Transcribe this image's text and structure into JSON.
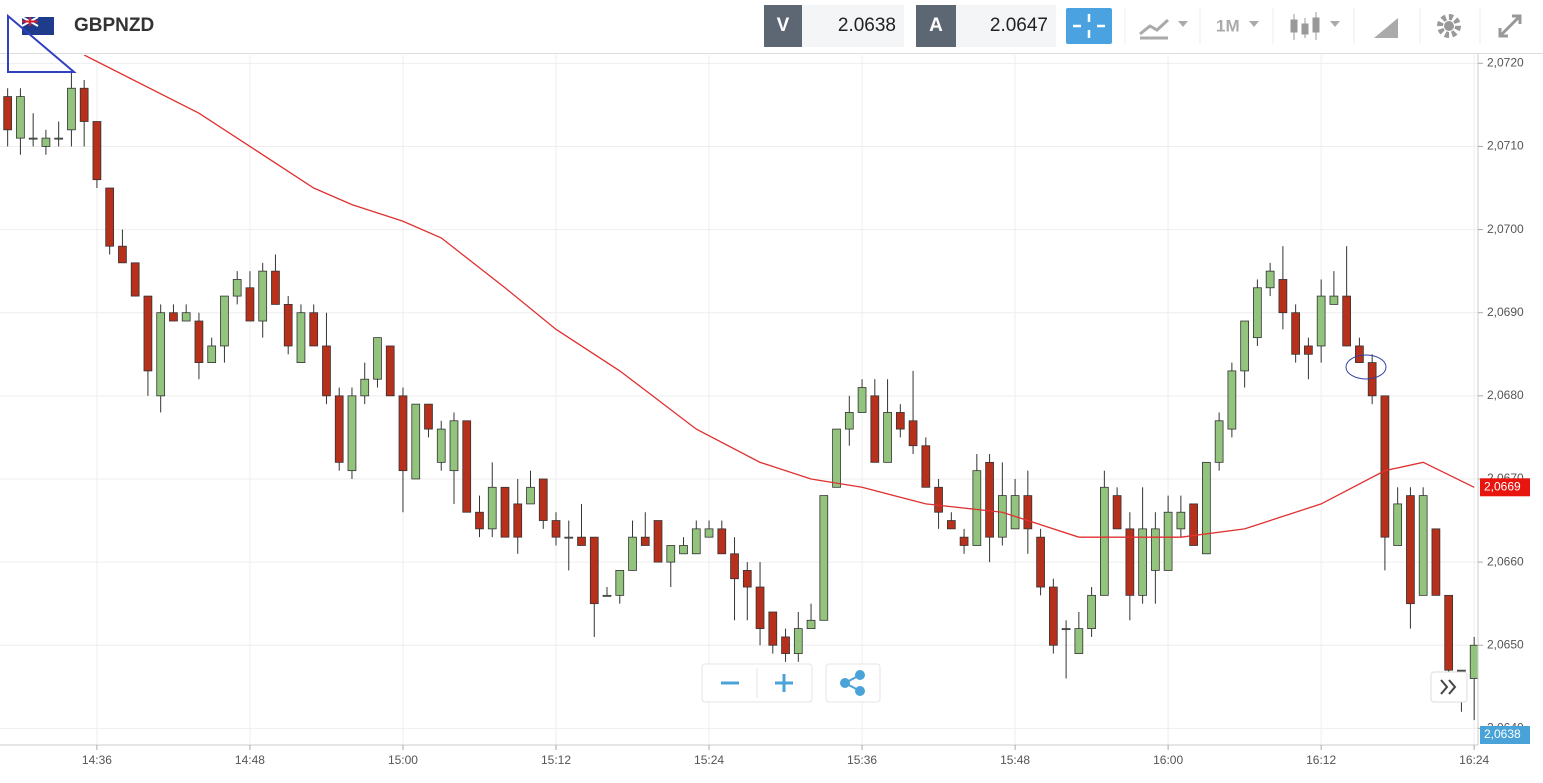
{
  "toolbar": {
    "symbol": "GBPNZD",
    "bid_label": "V",
    "bid": "2.0638",
    "ask_label": "A",
    "ask": "2.0647",
    "timeframe": "1M"
  },
  "chart_data": {
    "type": "candlestick",
    "up_color": "#93c47d",
    "down_color": "#b7301c",
    "grid": true,
    "x": [
      869,
      870,
      871,
      872,
      873,
      874,
      875,
      876,
      877,
      878,
      879,
      880,
      881,
      882,
      883,
      884,
      885,
      886,
      887,
      888,
      889,
      890,
      891,
      892,
      893,
      894,
      895,
      896,
      897,
      898,
      899,
      900,
      901,
      902,
      903,
      904,
      905,
      906,
      907,
      908,
      909,
      910,
      911,
      912,
      913,
      914,
      915,
      916,
      917,
      918,
      919,
      920,
      921,
      922,
      923,
      924,
      925,
      926,
      927,
      928,
      929,
      930,
      931,
      932,
      933,
      934,
      935,
      936,
      937,
      938,
      939,
      940,
      941,
      942,
      943,
      944,
      945,
      946,
      947,
      948,
      949,
      950,
      951,
      952,
      953,
      954,
      955,
      956,
      957,
      958,
      959,
      960,
      961,
      962,
      963,
      964,
      965,
      966,
      967,
      968,
      969,
      970,
      971,
      972,
      973,
      974,
      975,
      976,
      977,
      978,
      979,
      980,
      981,
      982,
      983,
      984
    ],
    "open": [
      2.0716,
      2.0711,
      2.0711,
      2.071,
      2.0711,
      2.0712,
      2.0717,
      2.0713,
      2.0705,
      2.0698,
      2.0696,
      2.0692,
      2.068,
      2.069,
      2.0689,
      2.0689,
      2.0684,
      2.0686,
      2.0692,
      2.0693,
      2.0689,
      2.0695,
      2.0691,
      2.0684,
      2.069,
      2.0686,
      2.068,
      2.0671,
      2.068,
      2.0682,
      2.0686,
      2.068,
      2.067,
      2.0679,
      2.0672,
      2.0671,
      2.0677,
      2.0666,
      2.0664,
      2.0669,
      2.0667,
      2.0667,
      2.067,
      2.0665,
      2.0663,
      2.0663,
      2.0663,
      2.0656,
      2.0656,
      2.0659,
      2.0663,
      2.0665,
      2.066,
      2.0661,
      2.0661,
      2.0663,
      2.0664,
      2.0661,
      2.0659,
      2.0657,
      2.0654,
      2.0651,
      2.0649,
      2.0652,
      2.0653,
      2.0669,
      2.0676,
      2.0678,
      2.068,
      2.0672,
      2.0678,
      2.0677,
      2.0674,
      2.0669,
      2.0665,
      2.0663,
      2.0662,
      2.0672,
      2.0663,
      2.0664,
      2.0668,
      2.0663,
      2.0657,
      2.0652,
      2.0649,
      2.0652,
      2.0656,
      2.0668,
      2.0664,
      2.0656,
      2.0659,
      2.0659,
      2.0664,
      2.0667,
      2.0661,
      2.0672,
      2.0676,
      2.0683,
      2.0687,
      2.0693,
      2.0694,
      2.069,
      2.0686,
      2.0686,
      2.0691,
      2.0692,
      2.0686,
      2.0684,
      2.068,
      2.0662,
      2.0668,
      2.0656,
      2.0664,
      2.0656,
      2.0647,
      2.0646
    ],
    "high": [
      2.0717,
      2.0717,
      2.0714,
      2.0712,
      2.0713,
      2.0719,
      2.0718,
      2.0713,
      2.0705,
      2.07,
      2.0696,
      2.0692,
      2.0691,
      2.0691,
      2.0691,
      2.069,
      2.0687,
      2.0692,
      2.0695,
      2.0695,
      2.0696,
      2.0697,
      2.0692,
      2.0691,
      2.0691,
      2.069,
      2.0681,
      2.0681,
      2.0684,
      2.0687,
      2.0686,
      2.0681,
      2.0679,
      2.0679,
      2.0677,
      2.0678,
      2.0677,
      2.0668,
      2.0672,
      2.0669,
      2.067,
      2.0671,
      2.067,
      2.0666,
      2.0665,
      2.0667,
      2.0663,
      2.0657,
      2.0659,
      2.0665,
      2.0666,
      2.0665,
      2.0662,
      2.0663,
      2.0665,
      2.0665,
      2.0665,
      2.0663,
      2.066,
      2.066,
      2.0654,
      2.0652,
      2.0654,
      2.0655,
      2.0668,
      2.0676,
      2.068,
      2.0682,
      2.0682,
      2.0682,
      2.0679,
      2.0683,
      2.0675,
      2.067,
      2.0666,
      2.0664,
      2.0673,
      2.0673,
      2.0672,
      2.067,
      2.0671,
      2.0664,
      2.0658,
      2.0653,
      2.0654,
      2.0657,
      2.0671,
      2.0669,
      2.0666,
      2.0669,
      2.0666,
      2.0668,
      2.0668,
      2.0667,
      2.0672,
      2.0678,
      2.0684,
      2.0689,
      2.0694,
      2.0696,
      2.0698,
      2.0691,
      2.0687,
      2.0694,
      2.0695,
      2.0698,
      2.0687,
      2.0685,
      2.068,
      2.0669,
      2.0669,
      2.0669,
      2.0664,
      2.0656,
      2.0647,
      2.0651
    ],
    "low": [
      2.071,
      2.0709,
      2.071,
      2.0709,
      2.071,
      2.071,
      2.071,
      2.0705,
      2.0697,
      2.0696,
      2.0692,
      2.068,
      2.0678,
      2.0689,
      2.0689,
      2.0682,
      2.0684,
      2.0684,
      2.0691,
      2.0689,
      2.0687,
      2.0691,
      2.0685,
      2.0684,
      2.0686,
      2.0679,
      2.0671,
      2.067,
      2.0679,
      2.0681,
      2.068,
      2.0666,
      2.067,
      2.0675,
      2.0671,
      2.0667,
      2.0666,
      2.0663,
      2.0663,
      2.0663,
      2.0661,
      2.0667,
      2.0664,
      2.0662,
      2.0659,
      2.0662,
      2.0651,
      2.0656,
      2.0655,
      2.0659,
      2.0662,
      2.066,
      2.0657,
      2.0661,
      2.0661,
      2.0663,
      2.0661,
      2.0653,
      2.0653,
      2.065,
      2.0649,
      2.0648,
      2.0648,
      2.0652,
      2.0653,
      2.0669,
      2.0674,
      2.0678,
      2.0672,
      2.0672,
      2.0675,
      2.0673,
      2.0669,
      2.0664,
      2.0664,
      2.0661,
      2.0662,
      2.066,
      2.0662,
      2.0664,
      2.0661,
      2.0656,
      2.0649,
      2.0646,
      2.0649,
      2.0651,
      2.0656,
      2.0664,
      2.0653,
      2.0655,
      2.0655,
      2.0659,
      2.0663,
      2.0662,
      2.0661,
      2.0671,
      2.0675,
      2.0681,
      2.0686,
      2.0692,
      2.0688,
      2.0684,
      2.0682,
      2.0684,
      2.0691,
      2.0686,
      2.0684,
      2.0679,
      2.0659,
      2.0662,
      2.0652,
      2.0656,
      2.0656,
      2.0645,
      2.0642,
      2.0641
    ],
    "close": [
      2.0712,
      2.0716,
      2.0711,
      2.0711,
      2.0711,
      2.0717,
      2.0713,
      2.0706,
      2.0698,
      2.0696,
      2.0692,
      2.0683,
      2.069,
      2.0689,
      2.069,
      2.0684,
      2.0686,
      2.0692,
      2.0694,
      2.0689,
      2.0695,
      2.0691,
      2.0686,
      2.069,
      2.0686,
      2.068,
      2.0672,
      2.068,
      2.0682,
      2.0687,
      2.068,
      2.0671,
      2.0679,
      2.0676,
      2.0676,
      2.0677,
      2.0666,
      2.0664,
      2.0669,
      2.0663,
      2.0663,
      2.0669,
      2.0665,
      2.0663,
      2.0663,
      2.0662,
      2.0655,
      2.0656,
      2.0659,
      2.0663,
      2.0662,
      2.066,
      2.0662,
      2.0662,
      2.0664,
      2.0664,
      2.0661,
      2.0658,
      2.0657,
      2.0652,
      2.065,
      2.0649,
      2.0652,
      2.0653,
      2.0668,
      2.0676,
      2.0678,
      2.0681,
      2.0672,
      2.0678,
      2.0676,
      2.0674,
      2.0669,
      2.0666,
      2.0664,
      2.0662,
      2.0671,
      2.0663,
      2.0668,
      2.0668,
      2.0664,
      2.0657,
      2.065,
      2.0652,
      2.0652,
      2.0656,
      2.0669,
      2.0664,
      2.0656,
      2.0664,
      2.0664,
      2.0666,
      2.0666,
      2.0662,
      2.0672,
      2.0677,
      2.0683,
      2.0689,
      2.0693,
      2.0695,
      2.069,
      2.0685,
      2.0685,
      2.0692,
      2.0692,
      2.0686,
      2.0684,
      2.068,
      2.0663,
      2.0667,
      2.0655,
      2.0668,
      2.0656,
      2.0647,
      2.0647,
      2.065
    ],
    "moving_average": {
      "color": "#e03030",
      "x": [
        875,
        884,
        888,
        893,
        896,
        900,
        903,
        908,
        912,
        917,
        923,
        928,
        932,
        936,
        941,
        947,
        953,
        961,
        966,
        972,
        977,
        980,
        984
      ],
      "values": [
        2.0721,
        2.0714,
        2.071,
        2.0705,
        2.0703,
        2.0701,
        2.0699,
        2.0693,
        2.0688,
        2.0683,
        2.0676,
        2.0672,
        2.067,
        2.0669,
        2.0667,
        2.0666,
        2.0663,
        2.0663,
        2.0664,
        2.0667,
        2.0671,
        2.0672,
        2.0669
      ]
    },
    "xlim": [
      868.4,
      984.3
    ],
    "ylim": [
      2.0638,
      2.0721
    ],
    "xticks": [
      {
        "value": 876,
        "label": "14:36"
      },
      {
        "value": 888,
        "label": "14:48"
      },
      {
        "value": 900,
        "label": "15:00"
      },
      {
        "value": 912,
        "label": "15:12"
      },
      {
        "value": 924,
        "label": "15:24"
      },
      {
        "value": 936,
        "label": "15:36"
      },
      {
        "value": 948,
        "label": "15:48"
      },
      {
        "value": 960,
        "label": "16:00"
      },
      {
        "value": 972,
        "label": "16:12"
      },
      {
        "value": 984,
        "label": "16:24"
      }
    ],
    "yticks": [
      {
        "value": 2.064,
        "label": "2,0640"
      },
      {
        "value": 2.065,
        "label": "2,0650"
      },
      {
        "value": 2.066,
        "label": "2,0660"
      },
      {
        "value": 2.067,
        "label": "2,0670"
      },
      {
        "value": 2.068,
        "label": "2,0680"
      },
      {
        "value": 2.069,
        "label": "2,0690"
      },
      {
        "value": 2.07,
        "label": "2,0700"
      },
      {
        "value": 2.071,
        "label": "2,0710"
      },
      {
        "value": 2.072,
        "label": "2,0720"
      }
    ],
    "price_tags": [
      {
        "value": 2.0669,
        "label": "2,0669",
        "color": "#e8150f"
      },
      {
        "value": 2.0638,
        "label": "2,0638",
        "color": "#4aa3d8"
      }
    ]
  }
}
